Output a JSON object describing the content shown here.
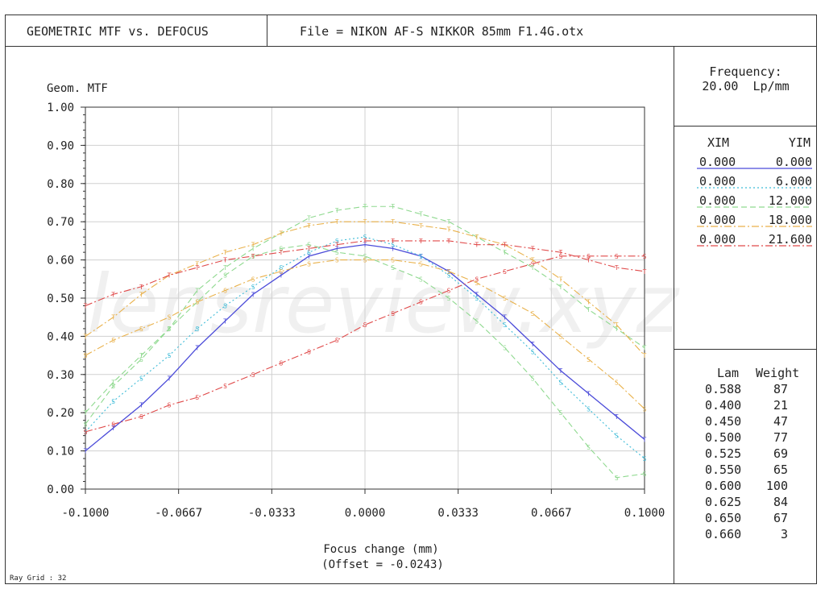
{
  "header": {
    "title": "GEOMETRIC MTF vs. DEFOCUS",
    "file": "File = NIKON AF-S NIKKOR 85mm F1.4G.otx"
  },
  "frequency": {
    "label": "Frequency:",
    "value": "20.00  Lp/mm"
  },
  "field_table": {
    "headers": [
      "XIM",
      "YIM"
    ],
    "rows": [
      {
        "xim": "0.000",
        "yim": "0.000"
      },
      {
        "xim": "0.000",
        "yim": "6.000"
      },
      {
        "xim": "0.000",
        "yim": "12.000"
      },
      {
        "xim": "0.000",
        "yim": "18.000"
      },
      {
        "xim": "0.000",
        "yim": "21.600"
      }
    ]
  },
  "weights": {
    "headers": [
      "Lam",
      "Weight"
    ],
    "rows": [
      {
        "lam": "0.588",
        "weight": "87"
      },
      {
        "lam": "0.400",
        "weight": "21"
      },
      {
        "lam": "0.450",
        "weight": "47"
      },
      {
        "lam": "0.500",
        "weight": "77"
      },
      {
        "lam": "0.525",
        "weight": "69"
      },
      {
        "lam": "0.550",
        "weight": "65"
      },
      {
        "lam": "0.600",
        "weight": "100"
      },
      {
        "lam": "0.625",
        "weight": "84"
      },
      {
        "lam": "0.650",
        "weight": "67"
      },
      {
        "lam": "0.660",
        "weight": "3"
      }
    ]
  },
  "footer": {
    "ray_grid": "Ray Grid : 32"
  },
  "watermark": "lensreview.xyz",
  "chart_data": {
    "type": "line",
    "ylabel": "Geom. MTF",
    "xlabel": "Focus change (mm)",
    "xlabel2": "(Offset = -0.0243)",
    "xlim": [
      -0.1,
      0.1
    ],
    "ylim": [
      0,
      1
    ],
    "x_ticks": [
      "-0.1000",
      "-0.0667",
      "-0.0333",
      "0.0000",
      "0.0333",
      "0.0667",
      "0.1000"
    ],
    "y_ticks": [
      "0.00",
      "0.10",
      "0.20",
      "0.30",
      "0.40",
      "0.50",
      "0.60",
      "0.70",
      "0.80",
      "0.90",
      "1.00"
    ],
    "x": [
      -0.1,
      -0.09,
      -0.08,
      -0.07,
      -0.06,
      -0.05,
      -0.04,
      -0.03,
      -0.02,
      -0.01,
      0.0,
      0.01,
      0.02,
      0.03,
      0.04,
      0.05,
      0.06,
      0.07,
      0.08,
      0.09,
      0.1
    ],
    "grid": true,
    "series": [
      {
        "field": "0.000",
        "color": "#4b4bd9",
        "dash": "",
        "values": [
          0.1,
          0.16,
          0.22,
          0.29,
          0.37,
          0.44,
          0.51,
          0.56,
          0.61,
          0.63,
          0.64,
          0.63,
          0.61,
          0.57,
          0.51,
          0.45,
          0.38,
          0.31,
          0.25,
          0.19,
          0.13
        ]
      },
      {
        "field": "6.000",
        "color": "#3fbcd8",
        "dash": "2,3",
        "values": [
          0.15,
          0.23,
          0.29,
          0.35,
          0.42,
          0.48,
          0.53,
          0.58,
          0.62,
          0.65,
          0.66,
          0.64,
          0.61,
          0.56,
          0.5,
          0.43,
          0.36,
          0.28,
          0.21,
          0.14,
          0.08
        ]
      },
      {
        "field": "12.000",
        "color": "#8fd98f",
        "dash": "7,4",
        "values": [
          0.17,
          0.27,
          0.34,
          0.42,
          0.49,
          0.56,
          0.61,
          0.63,
          0.64,
          0.62,
          0.61,
          0.58,
          0.55,
          0.5,
          0.44,
          0.37,
          0.29,
          0.2,
          0.11,
          0.03,
          0.04
        ]
      },
      {
        "field": "18.000",
        "color": "#e9b14a",
        "dash": "9,3,2,3",
        "values": [
          0.35,
          0.39,
          0.42,
          0.45,
          0.49,
          0.52,
          0.55,
          0.57,
          0.59,
          0.6,
          0.6,
          0.6,
          0.59,
          0.57,
          0.54,
          0.5,
          0.46,
          0.4,
          0.34,
          0.28,
          0.21
        ]
      },
      {
        "field": "21.600",
        "color": "#e04a4a",
        "dash": "9,3,2,3",
        "values": [
          0.15,
          0.17,
          0.19,
          0.22,
          0.24,
          0.27,
          0.3,
          0.33,
          0.36,
          0.39,
          0.43,
          0.46,
          0.49,
          0.52,
          0.55,
          0.57,
          0.59,
          0.61,
          0.61,
          0.61,
          0.61
        ]
      },
      {
        "field": "sag",
        "color": "#8fd98f",
        "dash": "7,4",
        "values": [
          0.2,
          0.28,
          0.35,
          0.42,
          0.52,
          0.58,
          0.63,
          0.67,
          0.71,
          0.73,
          0.74,
          0.74,
          0.72,
          0.7,
          0.66,
          0.62,
          0.58,
          0.53,
          0.47,
          0.42,
          0.37
        ]
      },
      {
        "field": "sag",
        "color": "#e9b14a",
        "dash": "9,3,2,3",
        "values": [
          0.4,
          0.45,
          0.51,
          0.56,
          0.59,
          0.62,
          0.64,
          0.67,
          0.69,
          0.7,
          0.7,
          0.7,
          0.69,
          0.68,
          0.66,
          0.64,
          0.6,
          0.55,
          0.49,
          0.43,
          0.35
        ]
      },
      {
        "field": "sag",
        "color": "#e04a4a",
        "dash": "9,3,2,3",
        "values": [
          0.48,
          0.51,
          0.53,
          0.56,
          0.58,
          0.6,
          0.61,
          0.62,
          0.63,
          0.64,
          0.65,
          0.65,
          0.65,
          0.65,
          0.64,
          0.64,
          0.63,
          0.62,
          0.6,
          0.58,
          0.57
        ]
      }
    ]
  }
}
